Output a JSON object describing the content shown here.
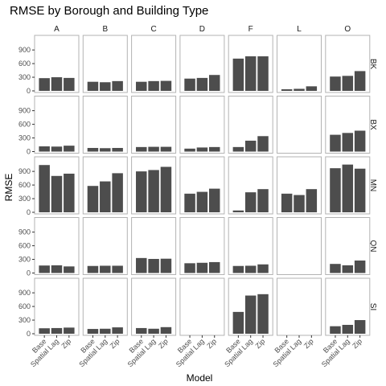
{
  "chart_data": {
    "type": "bar",
    "title": "RMSE by Borough and Building Type",
    "xlabel": "Model",
    "ylabel": "RMSE",
    "categories": [
      "Base",
      "Spatial Lag",
      "Zip"
    ],
    "columns": [
      "A",
      "B",
      "C",
      "D",
      "F",
      "L",
      "O"
    ],
    "rows": [
      "BK",
      "BX",
      "MN",
      "QN",
      "SI"
    ],
    "yticks": [
      0,
      300,
      600,
      900
    ],
    "ylim": [
      0,
      1150
    ],
    "grid": false,
    "panel_border": true,
    "panels": [
      {
        "row": "BK",
        "col": "A",
        "values": [
          280,
          300,
          285
        ]
      },
      {
        "row": "BK",
        "col": "B",
        "values": [
          200,
          190,
          215
        ]
      },
      {
        "row": "BK",
        "col": "C",
        "values": [
          200,
          215,
          220
        ]
      },
      {
        "row": "BK",
        "col": "D",
        "values": [
          270,
          285,
          350
        ]
      },
      {
        "row": "BK",
        "col": "F",
        "values": [
          710,
          760,
          760
        ]
      },
      {
        "row": "BK",
        "col": "L",
        "values": [
          35,
          45,
          100
        ]
      },
      {
        "row": "BK",
        "col": "O",
        "values": [
          315,
          330,
          435
        ]
      },
      {
        "row": "BX",
        "col": "A",
        "values": [
          115,
          110,
          130
        ]
      },
      {
        "row": "BX",
        "col": "B",
        "values": [
          80,
          75,
          80
        ]
      },
      {
        "row": "BX",
        "col": "C",
        "values": [
          100,
          105,
          105
        ]
      },
      {
        "row": "BX",
        "col": "D",
        "values": [
          65,
          90,
          100
        ]
      },
      {
        "row": "BX",
        "col": "F",
        "values": [
          100,
          240,
          340
        ]
      },
      {
        "row": "BX",
        "col": "L",
        "values": [
          0,
          0,
          0
        ]
      },
      {
        "row": "BX",
        "col": "O",
        "values": [
          370,
          410,
          460
        ]
      },
      {
        "row": "MN",
        "col": "A",
        "values": [
          1040,
          800,
          850
        ]
      },
      {
        "row": "MN",
        "col": "B",
        "values": [
          580,
          680,
          860
        ]
      },
      {
        "row": "MN",
        "col": "C",
        "values": [
          900,
          930,
          1000
        ]
      },
      {
        "row": "MN",
        "col": "D",
        "values": [
          410,
          450,
          520
        ]
      },
      {
        "row": "MN",
        "col": "F",
        "values": [
          40,
          440,
          510
        ]
      },
      {
        "row": "MN",
        "col": "L",
        "values": [
          410,
          380,
          510
        ]
      },
      {
        "row": "MN",
        "col": "O",
        "values": [
          970,
          1050,
          960
        ]
      },
      {
        "row": "QN",
        "col": "A",
        "values": [
          165,
          170,
          145
        ]
      },
      {
        "row": "QN",
        "col": "B",
        "values": [
          155,
          160,
          160
        ]
      },
      {
        "row": "QN",
        "col": "C",
        "values": [
          330,
          310,
          315
        ]
      },
      {
        "row": "QN",
        "col": "D",
        "values": [
          215,
          225,
          240
        ]
      },
      {
        "row": "QN",
        "col": "F",
        "values": [
          155,
          160,
          190
        ]
      },
      {
        "row": "QN",
        "col": "L",
        "values": [
          0,
          0,
          0
        ]
      },
      {
        "row": "QN",
        "col": "O",
        "values": [
          200,
          170,
          275
        ]
      },
      {
        "row": "SI",
        "col": "A",
        "values": [
          120,
          125,
          135
        ]
      },
      {
        "row": "SI",
        "col": "B",
        "values": [
          105,
          110,
          140
        ]
      },
      {
        "row": "SI",
        "col": "C",
        "values": [
          125,
          110,
          145
        ]
      },
      {
        "row": "SI",
        "col": "D",
        "values": [
          0,
          0,
          0
        ]
      },
      {
        "row": "SI",
        "col": "F",
        "values": [
          480,
          840,
          870
        ]
      },
      {
        "row": "SI",
        "col": "L",
        "values": [
          0,
          0,
          0
        ]
      },
      {
        "row": "SI",
        "col": "O",
        "values": [
          165,
          195,
          300
        ]
      }
    ],
    "colors": {
      "bar": "#4d4d4d",
      "panel_border": "#b3b3b3",
      "strip_text": "#1a1a1a",
      "tick_text": "#4d4d4d",
      "tick_mark": "#333333",
      "background": "#ffffff"
    }
  }
}
